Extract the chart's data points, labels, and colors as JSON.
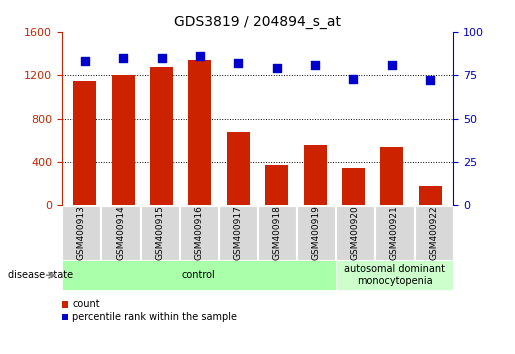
{
  "title": "GDS3819 / 204894_s_at",
  "categories": [
    "GSM400913",
    "GSM400914",
    "GSM400915",
    "GSM400916",
    "GSM400917",
    "GSM400918",
    "GSM400919",
    "GSM400920",
    "GSM400921",
    "GSM400922"
  ],
  "counts": [
    1150,
    1200,
    1280,
    1340,
    680,
    370,
    560,
    340,
    540,
    175
  ],
  "percentiles": [
    83,
    85,
    85,
    86,
    82,
    79,
    81,
    73,
    81,
    72
  ],
  "ylim_left": [
    0,
    1600
  ],
  "ylim_right": [
    0,
    100
  ],
  "yticks_left": [
    0,
    400,
    800,
    1200,
    1600
  ],
  "yticks_right": [
    0,
    25,
    50,
    75,
    100
  ],
  "bar_color": "#cc2200",
  "scatter_color": "#0000cc",
  "grid_color": "#000000",
  "left_tick_color": "#cc2200",
  "right_tick_color": "#0000cc",
  "disease_groups": [
    {
      "label": "control",
      "start": 0,
      "end": 7,
      "color": "#aaffaa"
    },
    {
      "label": "autosomal dominant\nmonocytopenia",
      "start": 7,
      "end": 10,
      "color": "#ccffcc"
    }
  ],
  "disease_state_label": "disease state",
  "legend_items": [
    {
      "label": "count",
      "color": "#cc2200"
    },
    {
      "label": "percentile rank within the sample",
      "color": "#0000cc"
    }
  ],
  "bar_width": 0.6,
  "n_control": 7,
  "n_disease": 3,
  "figsize": [
    5.15,
    3.54
  ],
  "dpi": 100
}
